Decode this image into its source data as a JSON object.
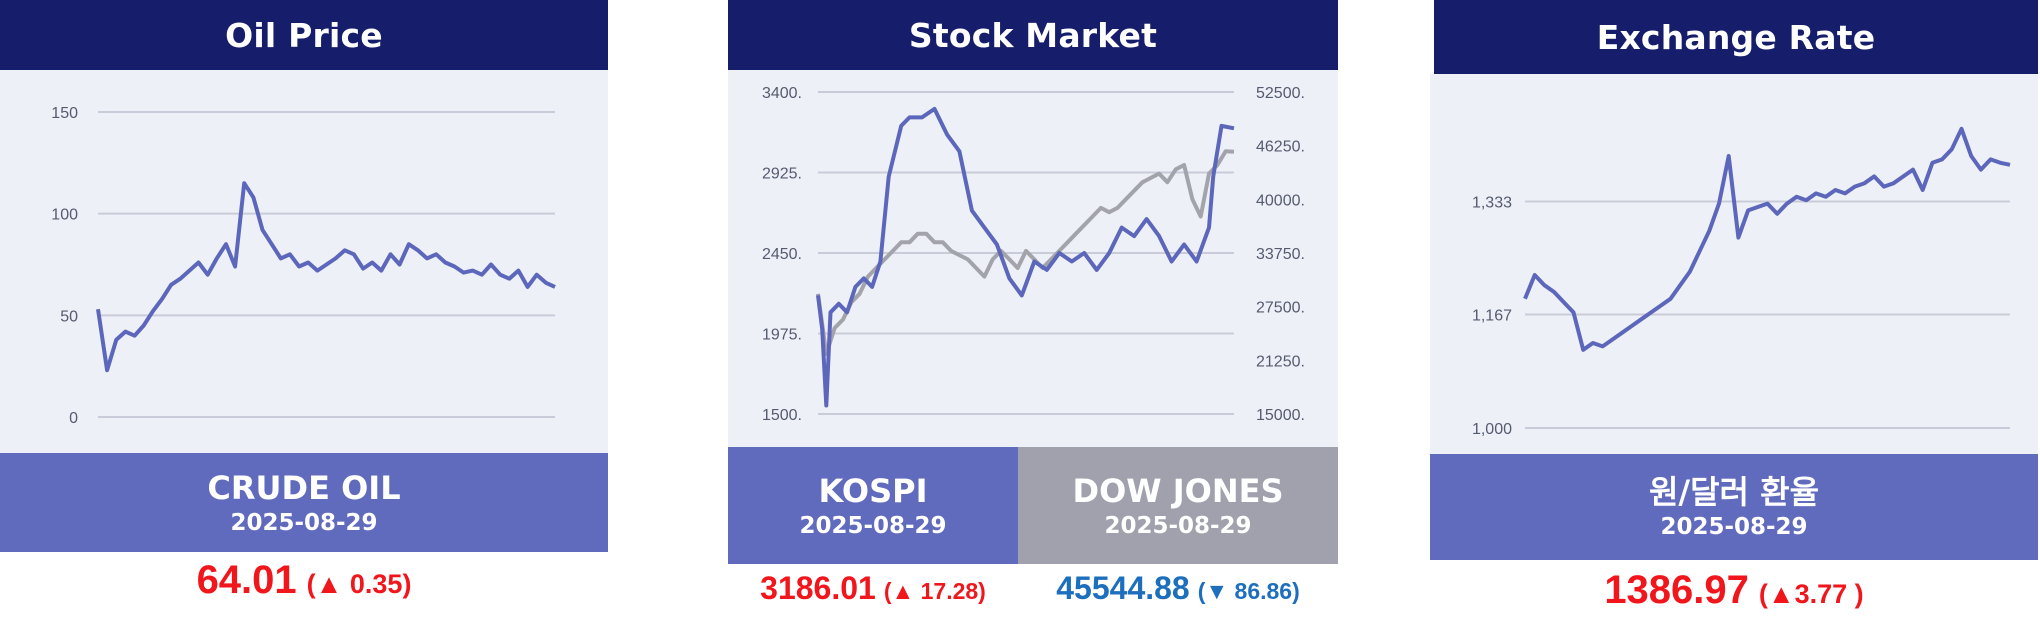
{
  "panels": {
    "oil": {
      "title": "Oil Price",
      "label": "CRUDE OIL",
      "date": "2025-08-29",
      "value": "64.01",
      "change": "(▲ 0.35)"
    },
    "stock": {
      "title": "Stock Market",
      "kospi": {
        "label": "KOSPI",
        "date": "2025-08-29",
        "value": "3186.01",
        "change": "(▲ 17.28)"
      },
      "dow": {
        "label": "DOW JONES",
        "date": "2025-08-29",
        "value": "45544.88",
        "change": "(▼ 86.86)"
      }
    },
    "fx": {
      "title": "Exchange Rate",
      "label": "원/달러 환율",
      "date": "2025-08-29",
      "value": "1386.97",
      "change": "(▲3.77 )"
    }
  },
  "colors": {
    "header": "#161d6b",
    "footer_primary": "#616bbd",
    "footer_secondary": "#a0a1ac",
    "plot_bg": "#eef0f8",
    "line_primary": "#5c67bb",
    "line_secondary": "#a3a3ab",
    "up": "#f0161c",
    "down": "#1d6fbd"
  },
  "chart_data": [
    {
      "type": "line",
      "title": "Oil Price",
      "ylim": [
        0,
        150
      ],
      "yticks": [
        "0",
        "50",
        "100",
        "150"
      ],
      "grid": true,
      "series": [
        {
          "name": "CRUDE OIL",
          "x": [
            0,
            2,
            4,
            6,
            8,
            10,
            12,
            14,
            16,
            18,
            20,
            22,
            24,
            26,
            28,
            30,
            32,
            34,
            36,
            38,
            40,
            42,
            44,
            46,
            48,
            50,
            52,
            54,
            56,
            58,
            60,
            62,
            64,
            66,
            68,
            70,
            72,
            74,
            76,
            78,
            80,
            82,
            84,
            86,
            88,
            90,
            92,
            94,
            96,
            98,
            100
          ],
          "values": [
            53,
            23,
            38,
            42,
            40,
            45,
            52,
            58,
            65,
            68,
            72,
            76,
            70,
            78,
            85,
            74,
            115,
            108,
            92,
            85,
            78,
            80,
            74,
            76,
            72,
            75,
            78,
            82,
            80,
            73,
            76,
            72,
            80,
            75,
            85,
            82,
            78,
            80,
            76,
            74,
            71,
            72,
            70,
            75,
            70,
            68,
            72,
            64,
            70,
            66,
            64
          ]
        }
      ]
    },
    {
      "type": "line",
      "title": "Stock Market",
      "ylim_left": [
        1500,
        3400
      ],
      "yticks_left": [
        "1500.",
        "1975.",
        "2450.",
        "2925.",
        "3400."
      ],
      "ylim_right": [
        15000,
        52500
      ],
      "yticks_right": [
        "15000.",
        "21250.",
        "27500.",
        "33750.",
        "40000.",
        "46250.",
        "52500."
      ],
      "grid": true,
      "series": [
        {
          "name": "KOSPI",
          "axis": "left",
          "x": [
            0,
            1,
            2,
            3,
            5,
            7,
            9,
            11,
            13,
            15,
            17,
            20,
            22,
            25,
            28,
            31,
            34,
            37,
            40,
            43,
            46,
            49,
            52,
            55,
            58,
            61,
            64,
            67,
            70,
            73,
            76,
            79,
            82,
            85,
            88,
            91,
            94,
            95,
            97,
            100
          ],
          "values": [
            2200,
            2000,
            1550,
            2100,
            2150,
            2100,
            2250,
            2300,
            2250,
            2400,
            2900,
            3200,
            3250,
            3250,
            3300,
            3150,
            3050,
            2700,
            2600,
            2500,
            2300,
            2200,
            2400,
            2350,
            2450,
            2400,
            2450,
            2350,
            2450,
            2600,
            2550,
            2650,
            2550,
            2400,
            2500,
            2400,
            2600,
            2900,
            3200,
            3186
          ]
        },
        {
          "name": "DOW JONES",
          "axis": "right",
          "x": [
            0,
            2,
            4,
            6,
            8,
            10,
            12,
            14,
            16,
            18,
            20,
            22,
            24,
            26,
            28,
            30,
            32,
            34,
            36,
            38,
            40,
            42,
            44,
            46,
            48,
            50,
            52,
            54,
            56,
            58,
            60,
            62,
            64,
            66,
            68,
            70,
            72,
            74,
            76,
            78,
            80,
            82,
            84,
            86,
            88,
            90,
            92,
            94,
            96,
            98,
            100
          ],
          "values": [
            29000,
            22000,
            25000,
            26000,
            28000,
            29000,
            31000,
            32000,
            33000,
            34000,
            35000,
            35000,
            36000,
            36000,
            35000,
            35000,
            34000,
            33500,
            33000,
            32000,
            31000,
            33000,
            34000,
            33000,
            32000,
            34000,
            33000,
            32000,
            33000,
            34000,
            35000,
            36000,
            37000,
            38000,
            39000,
            38500,
            39000,
            40000,
            41000,
            42000,
            42500,
            43000,
            42000,
            43500,
            44000,
            40000,
            38000,
            43000,
            44000,
            45600,
            45545
          ]
        }
      ]
    },
    {
      "type": "line",
      "title": "Exchange Rate",
      "ylim": [
        1000,
        1450
      ],
      "yticks": [
        "1,000",
        "1,167",
        "1,333"
      ],
      "grid": true,
      "series": [
        {
          "name": "원/달러 환율",
          "x": [
            0,
            2,
            4,
            6,
            8,
            10,
            12,
            14,
            16,
            18,
            20,
            22,
            24,
            26,
            28,
            30,
            32,
            34,
            36,
            38,
            40,
            42,
            44,
            46,
            48,
            50,
            52,
            54,
            56,
            58,
            60,
            62,
            64,
            66,
            68,
            70,
            72,
            74,
            76,
            78,
            80,
            82,
            84,
            86,
            88,
            90,
            92,
            94,
            96,
            98,
            100
          ],
          "values": [
            1190,
            1225,
            1210,
            1200,
            1185,
            1170,
            1115,
            1125,
            1120,
            1130,
            1140,
            1150,
            1160,
            1170,
            1180,
            1190,
            1210,
            1230,
            1260,
            1290,
            1330,
            1400,
            1280,
            1320,
            1325,
            1330,
            1315,
            1330,
            1340,
            1335,
            1345,
            1340,
            1350,
            1345,
            1355,
            1360,
            1370,
            1355,
            1360,
            1370,
            1380,
            1350,
            1390,
            1395,
            1410,
            1440,
            1400,
            1380,
            1395,
            1390,
            1387
          ]
        }
      ]
    }
  ]
}
